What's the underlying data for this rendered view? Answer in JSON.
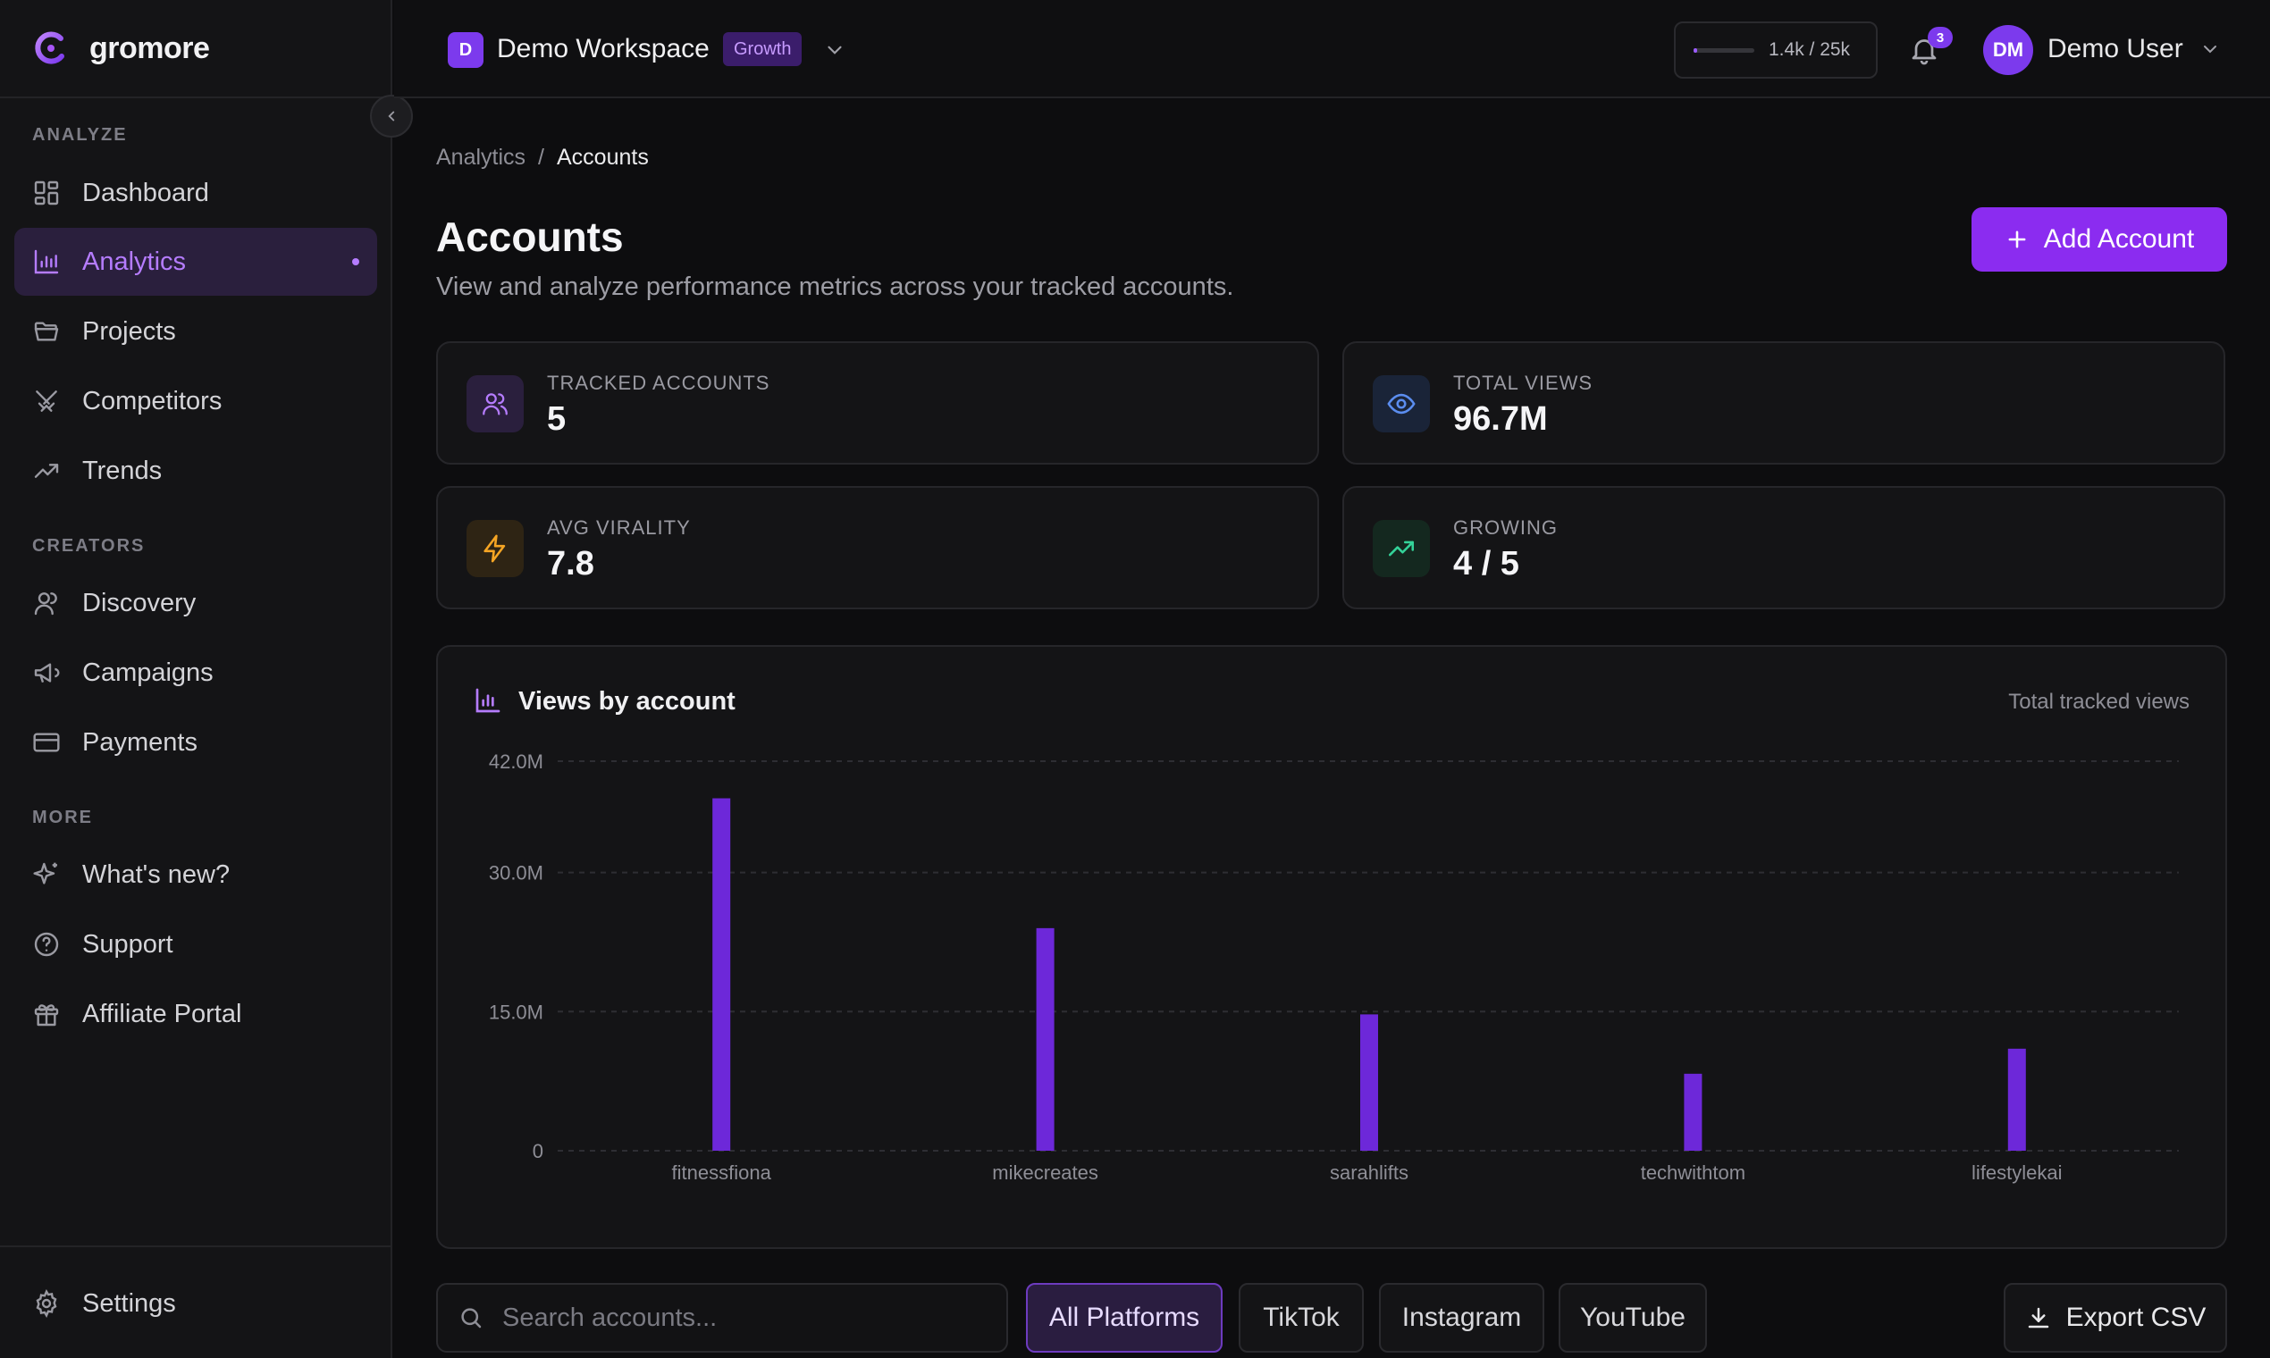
{
  "brand": {
    "name": "gromore"
  },
  "sidebar": {
    "sections": [
      {
        "label": "ANALYZE"
      },
      {
        "label": "CREATORS"
      },
      {
        "label": "MORE"
      }
    ],
    "items": [
      {
        "label": "Dashboard",
        "icon": "dashboard-icon"
      },
      {
        "label": "Analytics",
        "icon": "bar-chart-icon",
        "active": true
      },
      {
        "label": "Projects",
        "icon": "folder-icon"
      },
      {
        "label": "Competitors",
        "icon": "swords-icon"
      },
      {
        "label": "Trends",
        "icon": "trending-up-icon"
      },
      {
        "label": "Discovery",
        "icon": "user-icon"
      },
      {
        "label": "Campaigns",
        "icon": "megaphone-icon"
      },
      {
        "label": "Payments",
        "icon": "credit-card-icon"
      },
      {
        "label": "What's new?",
        "icon": "sparkles-icon"
      },
      {
        "label": "Support",
        "icon": "help-circle-icon"
      },
      {
        "label": "Affiliate Portal",
        "icon": "gift-icon"
      }
    ],
    "settings_label": "Settings"
  },
  "topbar": {
    "workspace_initial": "D",
    "workspace_name": "Demo Workspace",
    "plan_badge": "Growth",
    "usage_text": "1.4k / 25k",
    "usage_fraction": 0.056,
    "notification_count": "3",
    "user_initials": "DM",
    "user_name": "Demo User"
  },
  "breadcrumb": {
    "parent": "Analytics",
    "separator": "/",
    "current": "Accounts"
  },
  "page": {
    "title": "Accounts",
    "subtitle": "View and analyze performance metrics across your tracked accounts.",
    "add_button": "Add Account"
  },
  "stats": [
    {
      "label": "TRACKED ACCOUNTS",
      "value": "5",
      "icon": "users-icon",
      "color": "#b57cff"
    },
    {
      "label": "TOTAL VIEWS",
      "value": "96.7M",
      "icon": "eye-icon",
      "color": "#5b8def"
    },
    {
      "label": "AVG VIRALITY",
      "value": "7.8",
      "icon": "lightning-icon",
      "color": "#f5a524"
    },
    {
      "label": "GROWING",
      "value": "4 / 5",
      "icon": "trending-up-icon",
      "color": "#34d399"
    }
  ],
  "chart": {
    "title": "Views by account",
    "meta": "Total tracked views"
  },
  "chart_data": {
    "type": "bar",
    "title": "Views by account",
    "categories": [
      "fitnessfiona",
      "mikecreates",
      "sarahlifts",
      "techwithtom",
      "lifestylekai"
    ],
    "values": [
      38.0,
      24.0,
      14.7,
      8.3,
      11.0
    ],
    "y_tick_labels": [
      "0",
      "15.0M",
      "30.0M",
      "42.0M"
    ],
    "y_ticks": [
      0,
      15,
      30,
      42
    ],
    "ylim": [
      0,
      42
    ],
    "unit": "M",
    "bar_color": "#6d28d9",
    "grid": true
  },
  "filters": {
    "search_placeholder": "Search accounts...",
    "chips": [
      "All Platforms",
      "TikTok",
      "Instagram",
      "YouTube"
    ],
    "active_chip": "All Platforms",
    "export_label": "Export CSV"
  },
  "colors": {
    "accent": "#8b2cf0",
    "active_nav": "#b57cff"
  }
}
